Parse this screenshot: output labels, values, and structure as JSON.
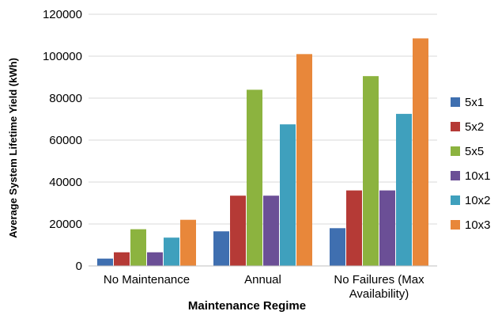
{
  "chart_data": {
    "type": "bar",
    "xlabel": "Maintenance Regime",
    "ylabel": "Average System Lifetime Yield (kWh)",
    "ylim": [
      0,
      120000
    ],
    "y_ticks": [
      "0",
      "20000",
      "40000",
      "60000",
      "80000",
      "100000",
      "120000"
    ],
    "grid": true,
    "legend_position": "right",
    "categories": [
      [
        "No Maintenance"
      ],
      [
        "Annual"
      ],
      [
        "No Failures (Max",
        "Availability)"
      ]
    ],
    "series": [
      {
        "name": "5x1",
        "color": "#3f6fb0",
        "values": [
          3500,
          16500,
          18000
        ]
      },
      {
        "name": "5x2",
        "color": "#b53a36",
        "values": [
          6500,
          33500,
          36000
        ]
      },
      {
        "name": "5x5",
        "color": "#8cb33f",
        "values": [
          17500,
          84000,
          90500
        ]
      },
      {
        "name": "10x1",
        "color": "#6b4f96",
        "values": [
          6500,
          33500,
          36000
        ]
      },
      {
        "name": "10x2",
        "color": "#3fa0bd",
        "values": [
          13500,
          67500,
          72500
        ]
      },
      {
        "name": "10x3",
        "color": "#e8873a",
        "values": [
          22000,
          101000,
          108500
        ]
      }
    ]
  }
}
